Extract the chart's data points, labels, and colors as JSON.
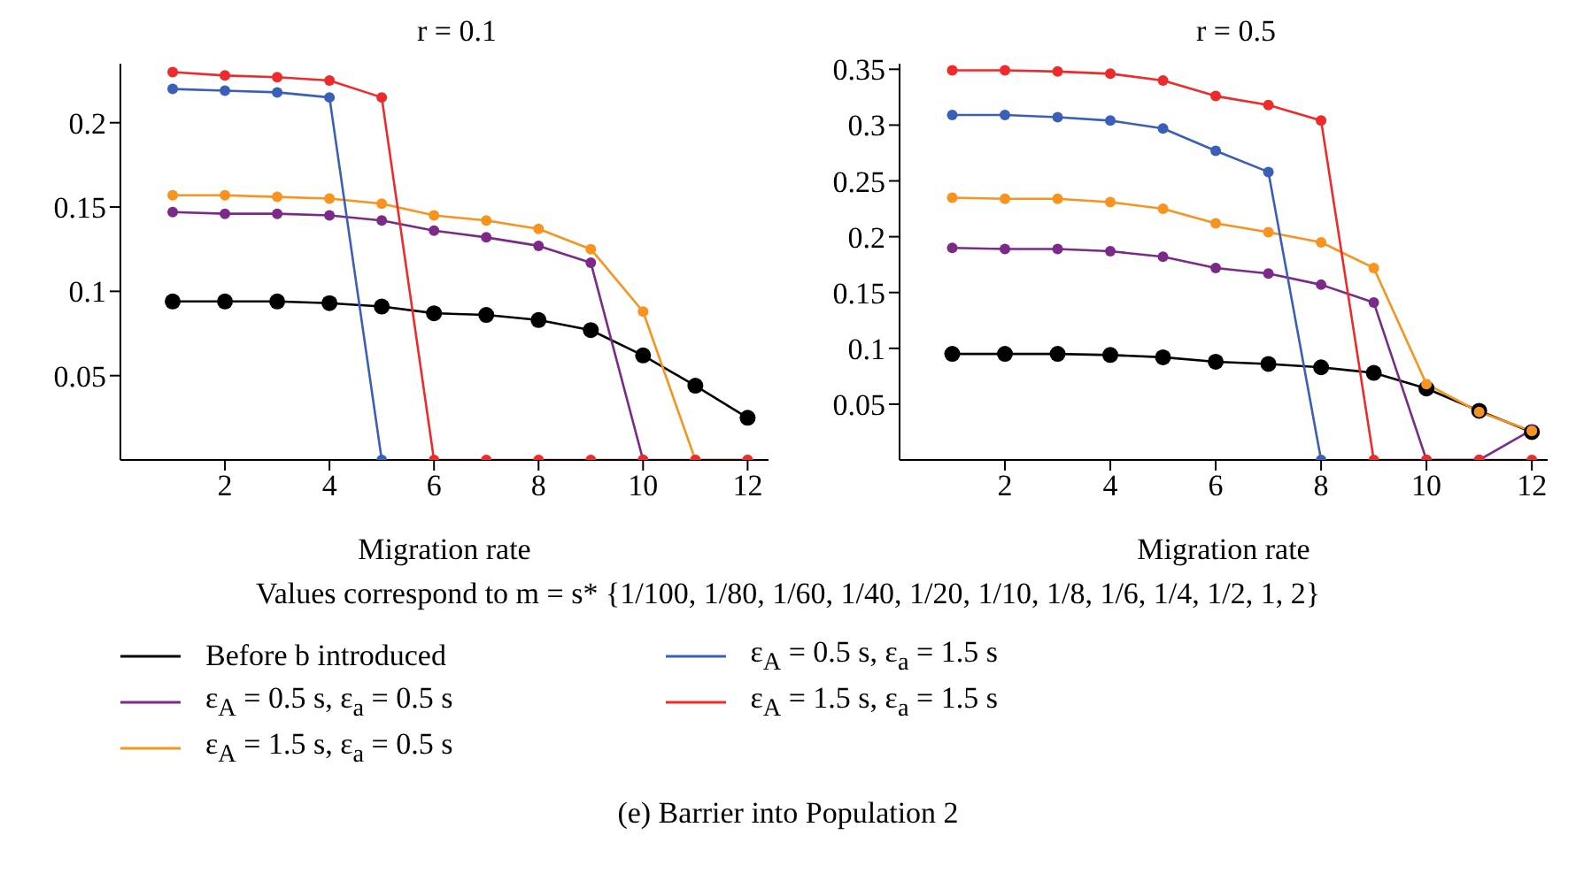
{
  "chart_data": [
    {
      "type": "line",
      "title": "r = 0.1",
      "xlabel": "Migration rate",
      "x": [
        1,
        2,
        3,
        4,
        5,
        6,
        7,
        8,
        9,
        10,
        11,
        12
      ],
      "xlim": [
        0,
        12.4
      ],
      "xticks": [
        2,
        4,
        6,
        8,
        10,
        12
      ],
      "ylim": [
        0,
        0.235
      ],
      "yticks": [
        0.05,
        0.1,
        0.15,
        0.2
      ],
      "grid": false,
      "marker": "circle",
      "legend": "bottom",
      "annotations": [
        "Values correspond to m = s* {1/100, 1/80, 1/60, 1/40, 1/20, 1/10, 1/8, 1/6, 1/4, 1/2, 1, 2}",
        "(e)  Barrier into Population 2"
      ],
      "series": [
        {
          "name": "Before b introduced",
          "color": "#000000",
          "values": [
            0.094,
            0.094,
            0.094,
            0.093,
            0.091,
            0.087,
            0.086,
            0.083,
            0.077,
            0.062,
            0.044,
            0.025
          ]
        },
        {
          "name": "ε$_{A}$ = 0.5 s, ε$_{a}$ = 0.5 s",
          "color": "#7b2a8a",
          "values": [
            0.147,
            0.146,
            0.146,
            0.145,
            0.142,
            0.136,
            0.132,
            0.127,
            0.117,
            0,
            null,
            null
          ]
        },
        {
          "name": "ε$_{A}$ = 1.5 s, ε$_{a}$ = 0.5 s",
          "color": "#f7931e",
          "values": [
            0.157,
            0.157,
            0.156,
            0.155,
            0.152,
            0.145,
            0.142,
            0.137,
            0.125,
            0.088,
            0,
            0
          ]
        },
        {
          "name": "ε$_{A}$ = 0.5 s, ε$_{a}$ = 1.5 s",
          "color": "#3a5fb8",
          "values": [
            0.22,
            0.219,
            0.218,
            0.215,
            0,
            null,
            null,
            null,
            null,
            null,
            null,
            null
          ]
        },
        {
          "name": "ε$_{A}$ = 1.5 s, ε$_{a}$ = 1.5 s",
          "color": "#ee2a2a",
          "values": [
            0.23,
            0.228,
            0.227,
            0.225,
            0.215,
            0,
            0,
            0,
            0,
            0,
            0,
            0
          ]
        }
      ]
    },
    {
      "type": "line",
      "title": "r = 0.5",
      "xlabel": "Migration rate",
      "x": [
        1,
        2,
        3,
        4,
        5,
        6,
        7,
        8,
        9,
        10,
        11,
        12
      ],
      "xlim": [
        0,
        12.3
      ],
      "xticks": [
        2,
        4,
        6,
        8,
        10,
        12
      ],
      "ylim": [
        0,
        0.355
      ],
      "yticks": [
        0.05,
        0.1,
        0.15,
        0.2,
        0.25,
        0.3,
        0.35
      ],
      "grid": false,
      "marker": "circle",
      "series": [
        {
          "color": "#000000",
          "values": [
            0.095,
            0.095,
            0.095,
            0.094,
            0.092,
            0.088,
            0.086,
            0.083,
            0.078,
            0.064,
            0.044,
            0.025
          ]
        },
        {
          "color": "#7b2a8a",
          "values": [
            0.19,
            0.189,
            0.189,
            0.187,
            0.182,
            0.172,
            0.167,
            0.157,
            0.141,
            0,
            0,
            0.027
          ]
        },
        {
          "color": "#f7931e",
          "values": [
            0.235,
            0.234,
            0.234,
            0.231,
            0.225,
            0.212,
            0.204,
            0.195,
            0.172,
            0.068,
            0.043,
            0.026
          ]
        },
        {
          "color": "#3a5fb8",
          "values": [
            0.309,
            0.309,
            0.307,
            0.304,
            0.297,
            0.277,
            0.258,
            0,
            null,
            null,
            null,
            null
          ]
        },
        {
          "color": "#ee2a2a",
          "values": [
            0.349,
            0.349,
            0.348,
            0.346,
            0.34,
            0.326,
            0.318,
            0.304,
            0,
            0,
            0,
            0
          ]
        }
      ]
    }
  ]
}
